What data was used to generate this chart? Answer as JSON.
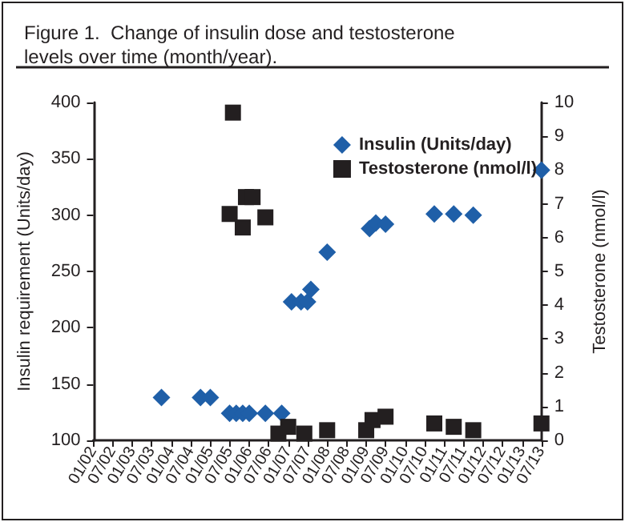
{
  "chart_data": {
    "type": "scatter",
    "title": "Figure 1.  Change of insulin dose and testosterone levels over time (month/year).",
    "ylabel": "Insulin requirement (Units/day)",
    "y2label": "Testosterone (nmol/l)",
    "xlim": [
      "2002-01",
      "2013-07"
    ],
    "xticks": [
      {
        "value": "2002-01",
        "label": "01/02"
      },
      {
        "value": "2002-07",
        "label": "07/02"
      },
      {
        "value": "2003-01",
        "label": "01/03"
      },
      {
        "value": "2003-07",
        "label": "07/03"
      },
      {
        "value": "2004-01",
        "label": "01/04"
      },
      {
        "value": "2004-07",
        "label": "07/04"
      },
      {
        "value": "2005-01",
        "label": "01/05"
      },
      {
        "value": "2005-07",
        "label": "07/05"
      },
      {
        "value": "2006-01",
        "label": "01/06"
      },
      {
        "value": "2006-07",
        "label": "07/06"
      },
      {
        "value": "2007-01",
        "label": "01/07"
      },
      {
        "value": "2007-07",
        "label": "07/07"
      },
      {
        "value": "2008-01",
        "label": "01/08"
      },
      {
        "value": "2008-07",
        "label": "07/08"
      },
      {
        "value": "2009-01",
        "label": "01/09"
      },
      {
        "value": "2009-07",
        "label": "07/09"
      },
      {
        "value": "2010-01",
        "label": "01/10"
      },
      {
        "value": "2010-07",
        "label": "07/10"
      },
      {
        "value": "2011-01",
        "label": "01/11"
      },
      {
        "value": "2011-07",
        "label": "07/11"
      },
      {
        "value": "2012-01",
        "label": "01/12"
      },
      {
        "value": "2012-07",
        "label": "07/12"
      },
      {
        "value": "2013-01",
        "label": "01/13"
      },
      {
        "value": "2013-07",
        "label": "07/13"
      }
    ],
    "ylim": [
      100,
      400
    ],
    "yticks": [
      100,
      150,
      200,
      250,
      300,
      350,
      400
    ],
    "y2lim": [
      0,
      10
    ],
    "y2ticks": [
      0,
      1,
      2,
      3,
      4,
      5,
      6,
      7,
      8,
      9,
      10
    ],
    "grid": false,
    "legend": "top right",
    "series": [
      {
        "name": "Insulin (Units/day)",
        "color": "#1f5fa8",
        "marker": "diamond",
        "x": [
          "2003-10",
          "2004-10",
          "2005-01",
          "2005-07",
          "2005-09",
          "2005-11",
          "2006-01",
          "2006-06",
          "2006-11",
          "2007-02",
          "2007-05",
          "2007-07",
          "2007-08",
          "2008-01",
          "2009-02",
          "2009-04",
          "2009-07",
          "2010-10",
          "2011-04",
          "2011-10",
          "2013-07"
        ],
        "values": [
          138,
          138,
          138,
          124,
          124,
          124,
          124,
          124,
          124,
          223,
          223,
          223,
          234,
          267,
          288,
          293,
          292,
          301,
          301,
          300,
          340
        ]
      },
      {
        "name": "Testosterone (nmol/l)",
        "color": "#231f20",
        "marker": "square",
        "axis": "y2",
        "x": [
          "2005-07",
          "2005-08",
          "2005-11",
          "2005-12",
          "2006-02",
          "2006-06",
          "2006-10",
          "2007-01",
          "2007-06",
          "2008-01",
          "2009-01",
          "2009-03",
          "2009-07",
          "2010-10",
          "2011-04",
          "2011-10",
          "2013-07"
        ],
        "values": [
          6.7,
          9.7,
          6.3,
          7.2,
          7.2,
          6.6,
          0.2,
          0.4,
          0.2,
          0.3,
          0.3,
          0.6,
          0.7,
          0.5,
          0.4,
          0.3,
          0.5
        ]
      }
    ]
  }
}
